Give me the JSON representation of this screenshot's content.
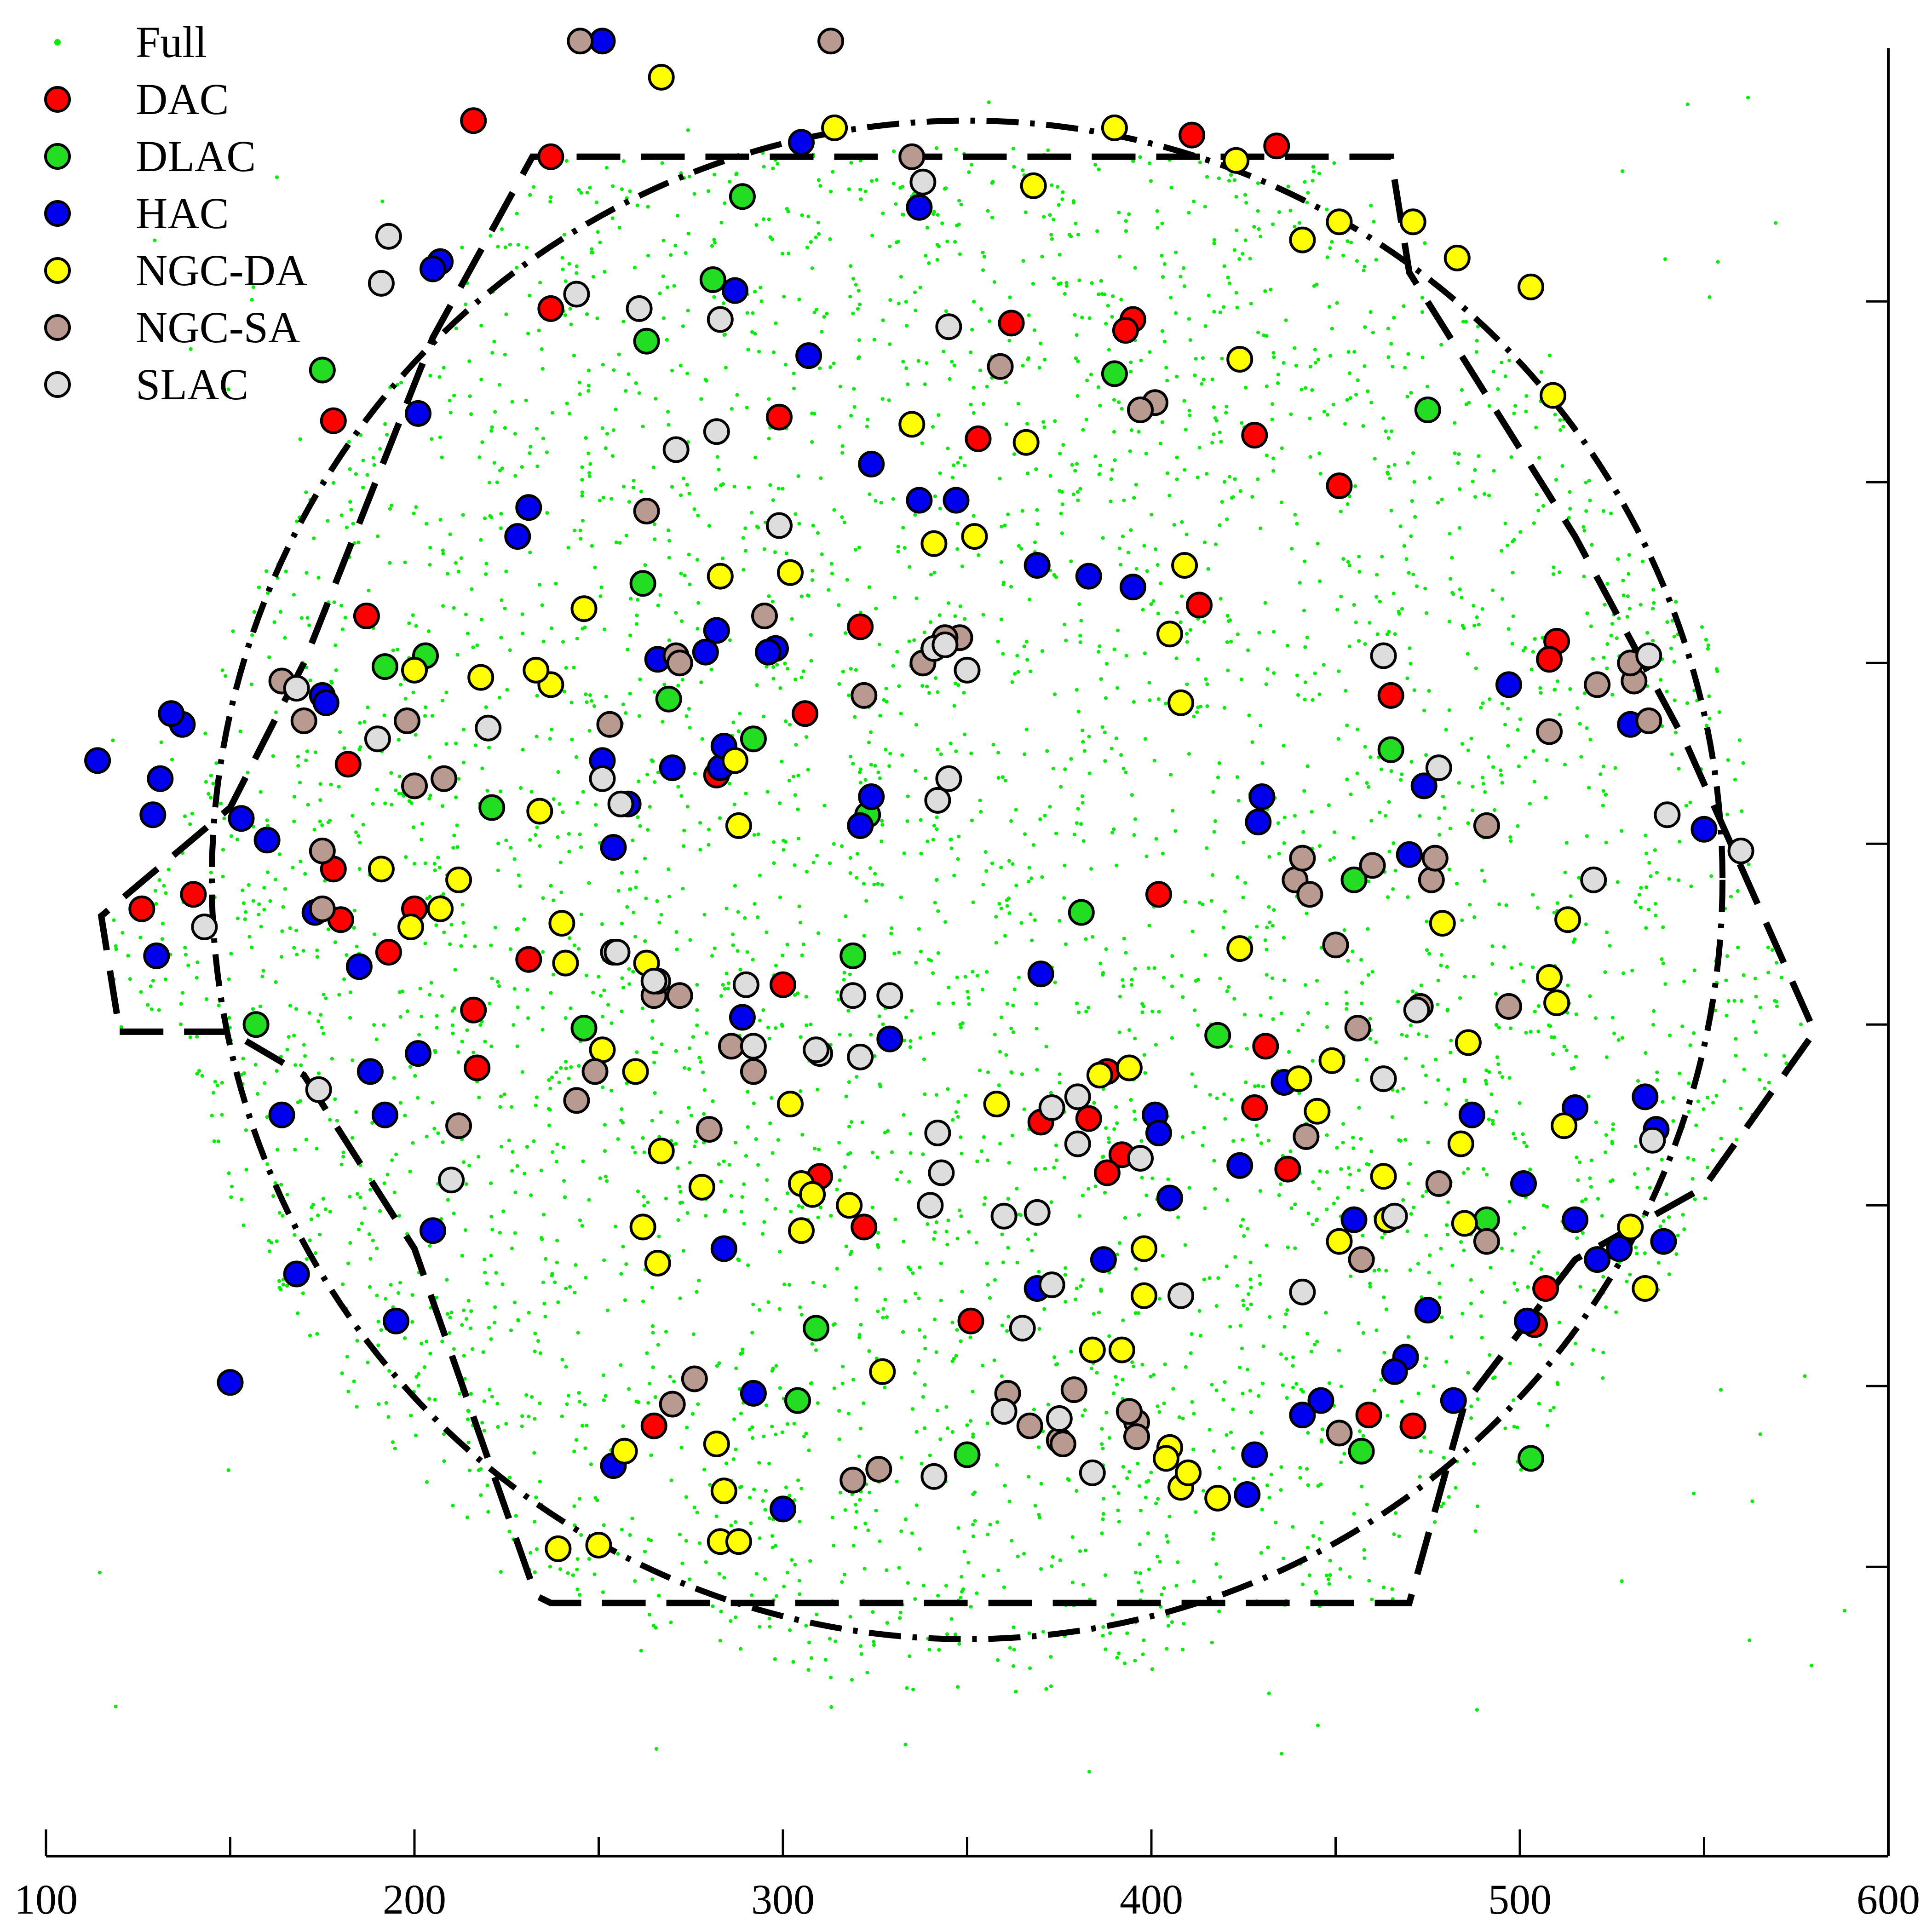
{
  "chart_data": {
    "type": "scatter",
    "title": "",
    "xlabel": "",
    "ylabel": "",
    "xlim": [
      100,
      600
    ],
    "ylim": [
      -30,
      470
    ],
    "x_ticks": [
      100,
      200,
      300,
      400,
      500,
      600
    ],
    "x_tick_labels": [
      "100",
      "200",
      "300",
      "400",
      "500",
      "600"
    ],
    "y_ticks": [
      50,
      100,
      150,
      200,
      250,
      300,
      350,
      400
    ],
    "y_tick_labels": [
      "",
      "",
      "",
      "",
      "",
      "",
      "",
      ""
    ],
    "grid": false,
    "legend_position": "top-left",
    "legend": [
      {
        "key": "full",
        "label": "Full",
        "marker": "dot",
        "color": "#00ee00"
      },
      {
        "key": "dac",
        "label": "DAC",
        "marker": "circle",
        "color": "#ff0000"
      },
      {
        "key": "dlac",
        "label": "DLAC",
        "marker": "circle",
        "color": "#22dd22"
      },
      {
        "key": "hac",
        "label": "HAC",
        "marker": "circle",
        "color": "#0000ee"
      },
      {
        "key": "ngcda",
        "label": "NGC-DA",
        "marker": "circle",
        "color": "#ffff00"
      },
      {
        "key": "ngcsa",
        "label": "NGC-SA",
        "marker": "circle",
        "color": "#b89a90"
      },
      {
        "key": "slac",
        "label": "SLAC",
        "marker": "circle",
        "color": "#dddddd"
      }
    ],
    "full_sample": {
      "description_shape": "dense cloud filling the hexagonal region",
      "x_range": [
        105,
        590
      ],
      "y_range": [
        -8,
        465
      ]
    },
    "series": [
      {
        "key": "dac",
        "name": "DAC",
        "x": [
          216,
          237,
          237,
          178,
          187,
          182,
          180,
          178,
          140,
          126,
          200,
          193,
          231,
          216,
          217,
          300,
          306,
          321,
          282,
          282,
          299,
          353,
          362,
          395,
          393,
          411,
          428,
          451,
          465,
          434,
          413,
          402,
          388,
          383,
          392,
          370,
          351,
          322,
          310,
          265,
          304,
          388,
          431,
          437,
          459,
          471,
          510,
          508,
          507,
          504,
          428
        ],
        "y": [
          450,
          440,
          398,
          367,
          313,
          272,
          229,
          243,
          236,
          232,
          232,
          220,
          218,
          204,
          188,
          211,
          286,
          310,
          309,
          269,
          368,
          362,
          394,
          395,
          392,
          446,
          363,
          349,
          291,
          443,
          316,
          236,
          187,
          174,
          164,
          173,
          118,
          144,
          158,
          89,
          96,
          159,
          194,
          160,
          92,
          89,
          306,
          301,
          127,
          117,
          177
        ]
      },
      {
        "key": "dlac",
        "name": "DLAC",
        "x": [
          289,
          281,
          263,
          262,
          192,
          203,
          221,
          175,
          157,
          269,
          323,
          292,
          319,
          246,
          381,
          390,
          465,
          475,
          455,
          418,
          491,
          457,
          304,
          309,
          350,
          503
        ],
        "y": [
          429,
          406,
          389,
          322,
          299,
          302,
          260,
          381,
          200,
          290,
          258,
          279,
          219,
          199,
          231,
          380,
          276,
          370,
          240,
          197,
          146,
          82,
          96,
          116,
          81,
          80
        ]
      },
      {
        "key": "hac",
        "name": "HAC",
        "x": [
          251,
          305,
          207,
          201,
          205,
          228,
          231,
          287,
          307,
          324,
          337,
          347,
          337,
          369,
          383,
          395,
          266,
          279,
          298,
          296,
          283,
          282,
          270,
          251,
          258,
          254,
          284,
          324,
          321,
          137,
          134,
          130,
          114,
          129,
          131,
          153,
          160,
          175,
          176,
          173,
          185,
          188,
          201,
          192,
          205,
          195,
          168,
          150,
          164,
          329,
          289,
          370,
          401,
          402,
          424,
          436,
          430,
          455,
          429,
          470,
          474,
          497,
          487,
          501,
          515,
          527,
          539,
          534,
          550,
          515,
          521,
          502,
          475,
          482,
          469,
          466,
          446,
          441,
          405,
          387,
          369,
          428,
          292,
          254,
          284,
          300,
          426,
          530,
          537
        ],
        "y": [
          472,
          444,
          411,
          369,
          409,
          335,
          343,
          403,
          385,
          355,
          426,
          345,
          345,
          327,
          324,
          321,
          301,
          303,
          304,
          303,
          271,
          309,
          271,
          273,
          261,
          249,
          277,
          263,
          255,
          283,
          286,
          219,
          273,
          258,
          268,
          257,
          251,
          291,
          289,
          231,
          216,
          187,
          192,
          175,
          143,
          118,
          131,
          101,
          175,
          196,
          202,
          214,
          175,
          170,
          161,
          184,
          263,
          146,
          256,
          247,
          266,
          294,
          175,
          156,
          146,
          138,
          140,
          180,
          254,
          177,
          135,
          118,
          121,
          96,
          108,
          104,
          96,
          92,
          152,
          135,
          127,
          81,
          98,
          78,
          138,
          66,
          70,
          283,
          171
        ]
      },
      {
        "key": "ngcda",
        "name": "NGC-DA",
        "x": [
          267,
          314,
          390,
          368,
          423,
          451,
          441,
          424,
          483,
          503,
          509,
          471,
          409,
          405,
          408,
          366,
          335,
          352,
          341,
          302,
          283,
          246,
          218,
          237,
          233,
          200,
          234,
          212,
          207,
          199,
          191,
          241,
          263,
          287,
          288,
          267,
          262,
          266,
          278,
          240,
          251,
          260,
          302,
          305,
          308,
          318,
          305,
          358,
          386,
          394,
          440,
          424,
          445,
          464,
          463,
          449,
          479,
          513,
          508,
          510,
          486,
          512,
          530,
          534,
          484,
          485,
          451,
          398,
          398,
          405,
          408,
          410,
          418,
          404,
          392,
          384,
          239,
          250,
          257,
          282,
          284,
          283,
          288,
          327
        ],
        "y": [
          462,
          448,
          448,
          432,
          439,
          422,
          417,
          384,
          412,
          404,
          374,
          422,
          327,
          308,
          289,
          361,
          366,
          335,
          333,
          325,
          324,
          315,
          296,
          294,
          298,
          298,
          259,
          240,
          232,
          227,
          243,
          217,
          217,
          273,
          255,
          165,
          144,
          134,
          155,
          228,
          193,
          187,
          178,
          156,
          153,
          150,
          143,
          178,
          186,
          188,
          185,
          221,
          176,
          146,
          158,
          190,
          228,
          229,
          213,
          206,
          195,
          172,
          144,
          127,
          167,
          145,
          140,
          125,
          138,
          83,
          72,
          76,
          69,
          80,
          110,
          110,
          55,
          56,
          82,
          84,
          71,
          57,
          57,
          104
        ]
      },
      {
        "key": "ngcsa",
        "name": "NGC-SA",
        "x": [
          245,
          313,
          335,
          359,
          401,
          397,
          263,
          295,
          253,
          322,
          348,
          344,
          338,
          271,
          272,
          208,
          200,
          198,
          170,
          164,
          175,
          175,
          244,
          249,
          212,
          286,
          292,
          280,
          265,
          272,
          276,
          270,
          361,
          379,
          451,
          456,
          473,
          508,
          521,
          531,
          530,
          491,
          460,
          439,
          441,
          476,
          457,
          491,
          478,
          442,
          497,
          477,
          535,
          450,
          443,
          396,
          375,
          367,
          376,
          396,
          394,
          326,
          319
        ],
        "y": [
          472,
          472,
          440,
          382,
          372,
          370,
          342,
          313,
          283,
          291,
          307,
          307,
          300,
          302,
          300,
          268,
          266,
          284,
          284,
          295,
          232,
          248,
          179,
          187,
          172,
          194,
          187,
          171,
          208,
          208,
          102,
          95,
          98,
          99,
          87,
          199,
          205,
          281,
          294,
          295,
          300,
          255,
          244,
          240,
          246,
          240,
          135,
          140,
          156,
          169,
          205,
          246,
          284,
          222,
          236,
          90,
          85,
          89,
          84,
          86,
          93,
          77,
          74
        ]
      },
      {
        "key": "slac",
        "name": "SLAC",
        "x": [
          338,
          193,
          191,
          244,
          261,
          283,
          282,
          271,
          299,
          341,
          350,
          345,
          344,
          463,
          535,
          536,
          520,
          560,
          540,
          478,
          472,
          463,
          441,
          408,
          384,
          375,
          341,
          340,
          342,
          310,
          309,
          319,
          329,
          290,
          292,
          254,
          255,
          210,
          174,
          143,
          168,
          190,
          220,
          251,
          256,
          266,
          265,
          342,
          345,
          369,
          373,
          380,
          373,
          380,
          397,
          360,
          360,
          365,
          321,
          343,
          466
        ],
        "y": [
          433,
          418,
          405,
          402,
          398,
          395,
          364,
          359,
          338,
          304,
          298,
          393,
          305,
          302,
          302,
          168,
          240,
          248,
          258,
          271,
          204,
          185,
          126,
          125,
          76,
          91,
          75,
          150,
          170,
          192,
          193,
          208,
          208,
          211,
          194,
          220,
          220,
          157,
          182,
          227,
          293,
          279,
          282,
          268,
          261,
          212,
          212,
          262,
          268,
          148,
          128,
          167,
          177,
          180,
          163,
          93,
          147,
          116,
          191,
          159,
          147
        ]
      }
    ],
    "boundaries": [
      {
        "key": "outer-hexagon",
        "style": "long-dash",
        "points": [
          [
            120,
            198
          ],
          [
            150,
            198
          ],
          [
            170,
            186
          ],
          [
            200,
            138
          ],
          [
            233,
            42
          ],
          [
            237,
            40
          ],
          [
            465,
            40
          ],
          [
            470,
            40
          ],
          [
            485,
            95
          ],
          [
            515,
            135
          ],
          [
            550,
            155
          ],
          [
            580,
            198
          ],
          [
            545,
            278
          ],
          [
            515,
            335
          ],
          [
            470,
            408
          ],
          [
            465,
            440
          ],
          [
            237,
            440
          ],
          [
            232,
            440
          ],
          [
            205,
            390
          ],
          [
            170,
            300
          ],
          [
            150,
            260
          ],
          [
            115,
            230
          ],
          [
            120,
            198
          ]
        ]
      },
      {
        "key": "inner-ellipse",
        "style": "dash-dot",
        "cx": 350,
        "cy": 240,
        "rx": 205,
        "ry": 210
      }
    ]
  }
}
